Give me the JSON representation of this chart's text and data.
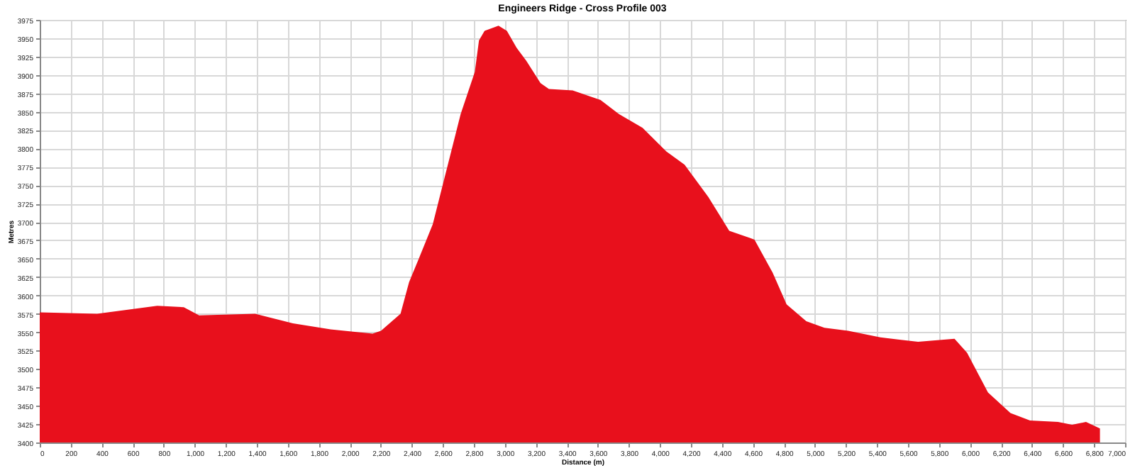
{
  "chart_data": {
    "type": "area",
    "title": "Engineers Ridge - Cross Profile 003",
    "xlabel": "Distance (m)",
    "ylabel": "Metres",
    "x": [
      0,
      370,
      758,
      929,
      1028,
      1389,
      1633,
      1876,
      2147,
      2201,
      2327,
      2382,
      2445,
      2535,
      2625,
      2715,
      2806,
      2833,
      2869,
      2959,
      3013,
      3076,
      3139,
      3230,
      3284,
      3437,
      3617,
      3735,
      3888,
      4041,
      4159,
      4312,
      4447,
      4583,
      4610,
      4727,
      4817,
      4944,
      5061,
      5214,
      5422,
      5665,
      5900,
      5981,
      6116,
      6261,
      6387,
      6567,
      6658,
      6748,
      6838
    ],
    "series": [
      {
        "color": "#e8101c",
        "values": [
          3577,
          3575,
          3586,
          3584,
          3573,
          3575,
          3562,
          3554,
          3548,
          3552,
          3575,
          3618,
          3650,
          3697,
          3772,
          3847,
          3904,
          3947,
          3960,
          3967,
          3960,
          3937,
          3919,
          3889,
          3881,
          3879,
          3866,
          3847,
          3828,
          3796,
          3778,
          3734,
          3688,
          3678,
          3676,
          3631,
          3588,
          3565,
          3556,
          3552,
          3543,
          3537,
          3541,
          3522,
          3468,
          3440,
          3430,
          3428,
          3424,
          3428,
          3419
        ]
      }
    ],
    "xlim": [
      0,
      7000
    ],
    "xticks": [
      0,
      200,
      400,
      600,
      800,
      {
        "value": 1000,
        "label": "1,000"
      },
      {
        "value": 1200,
        "label": "1,200"
      },
      {
        "value": 1400,
        "label": "1,400"
      },
      {
        "value": 1600,
        "label": "1,600"
      },
      {
        "value": 1800,
        "label": "1,800"
      },
      {
        "value": 2000,
        "label": "2,000"
      },
      {
        "value": 2200,
        "label": "2,200"
      },
      {
        "value": 2400,
        "label": "2,400"
      },
      {
        "value": 2600,
        "label": "2,600"
      },
      {
        "value": 2800,
        "label": "2,800"
      },
      {
        "value": 3000,
        "label": "3,000"
      },
      {
        "value": 3200,
        "label": "3,200"
      },
      {
        "value": 3400,
        "label": "3,400"
      },
      {
        "value": 3600,
        "label": "3,600"
      },
      {
        "value": 3800,
        "label": "3,800"
      },
      {
        "value": 4000,
        "label": "4,000"
      },
      {
        "value": 4200,
        "label": "4,200"
      },
      {
        "value": 4400,
        "label": "4,400"
      },
      {
        "value": 4600,
        "label": "4,600"
      },
      {
        "value": 4800,
        "label": "4,800"
      },
      {
        "value": 5000,
        "label": "5,000"
      },
      {
        "value": 5200,
        "label": "5,200"
      },
      {
        "value": 5400,
        "label": "5,400"
      },
      {
        "value": 5600,
        "label": "5,600"
      },
      {
        "value": 5800,
        "label": "5,800"
      },
      {
        "value": 6000,
        "label": "6,000"
      },
      {
        "value": 6200,
        "label": "6,200"
      },
      {
        "value": 6400,
        "label": "6,400"
      },
      {
        "value": 6600,
        "label": "6,600"
      },
      {
        "value": 6800,
        "label": "6,800"
      },
      {
        "value": 7000,
        "label": "7,000"
      }
    ],
    "ylim": [
      3400,
      3975
    ],
    "yticks": [
      3400,
      3425,
      3450,
      3475,
      3500,
      3525,
      3550,
      3575,
      3600,
      3625,
      3650,
      3675,
      3700,
      3725,
      3750,
      3775,
      3800,
      3825,
      3850,
      3875,
      3900,
      3925,
      3950,
      3975
    ],
    "grid": true
  }
}
